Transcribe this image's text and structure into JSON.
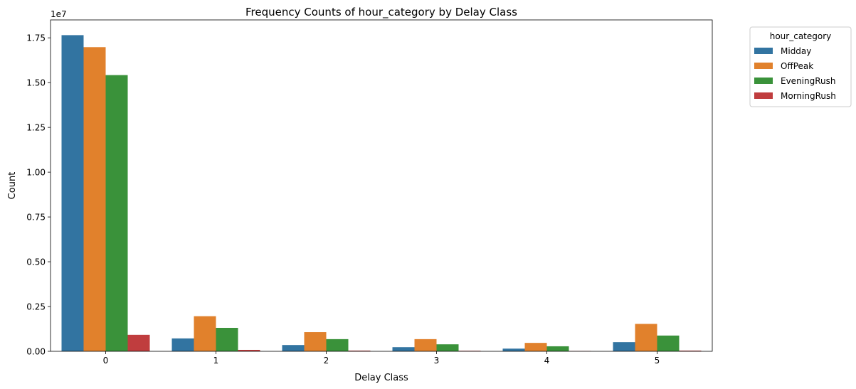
{
  "chart_data": {
    "type": "bar",
    "title": "Frequency Counts of hour_category by Delay Class",
    "xlabel": "Delay Class",
    "ylabel": "Count",
    "y_offset_text": "1e7",
    "categories": [
      "0",
      "1",
      "2",
      "3",
      "4",
      "5"
    ],
    "ylim": [
      0,
      18500000
    ],
    "yticks": [
      0,
      2500000,
      5000000,
      7500000,
      10000000,
      12500000,
      15000000,
      17500000
    ],
    "ytick_labels": [
      "0.00",
      "0.25",
      "0.50",
      "0.75",
      "1.00",
      "1.25",
      "1.50",
      "1.75"
    ],
    "grid": false,
    "legend": {
      "title": "hour_category",
      "placement": "outside-top-right"
    },
    "series": [
      {
        "name": "Midday",
        "color": "#3274a1",
        "values": [
          17650000,
          720000,
          350000,
          230000,
          150000,
          510000
        ]
      },
      {
        "name": "OffPeak",
        "color": "#e1812c",
        "values": [
          16980000,
          1960000,
          1070000,
          680000,
          470000,
          1530000
        ]
      },
      {
        "name": "EveningRush",
        "color": "#3a923a",
        "values": [
          15420000,
          1310000,
          680000,
          390000,
          280000,
          880000
        ]
      },
      {
        "name": "MorningRush",
        "color": "#c03d3e",
        "values": [
          920000,
          80000,
          40000,
          30000,
          20000,
          40000
        ]
      }
    ]
  }
}
